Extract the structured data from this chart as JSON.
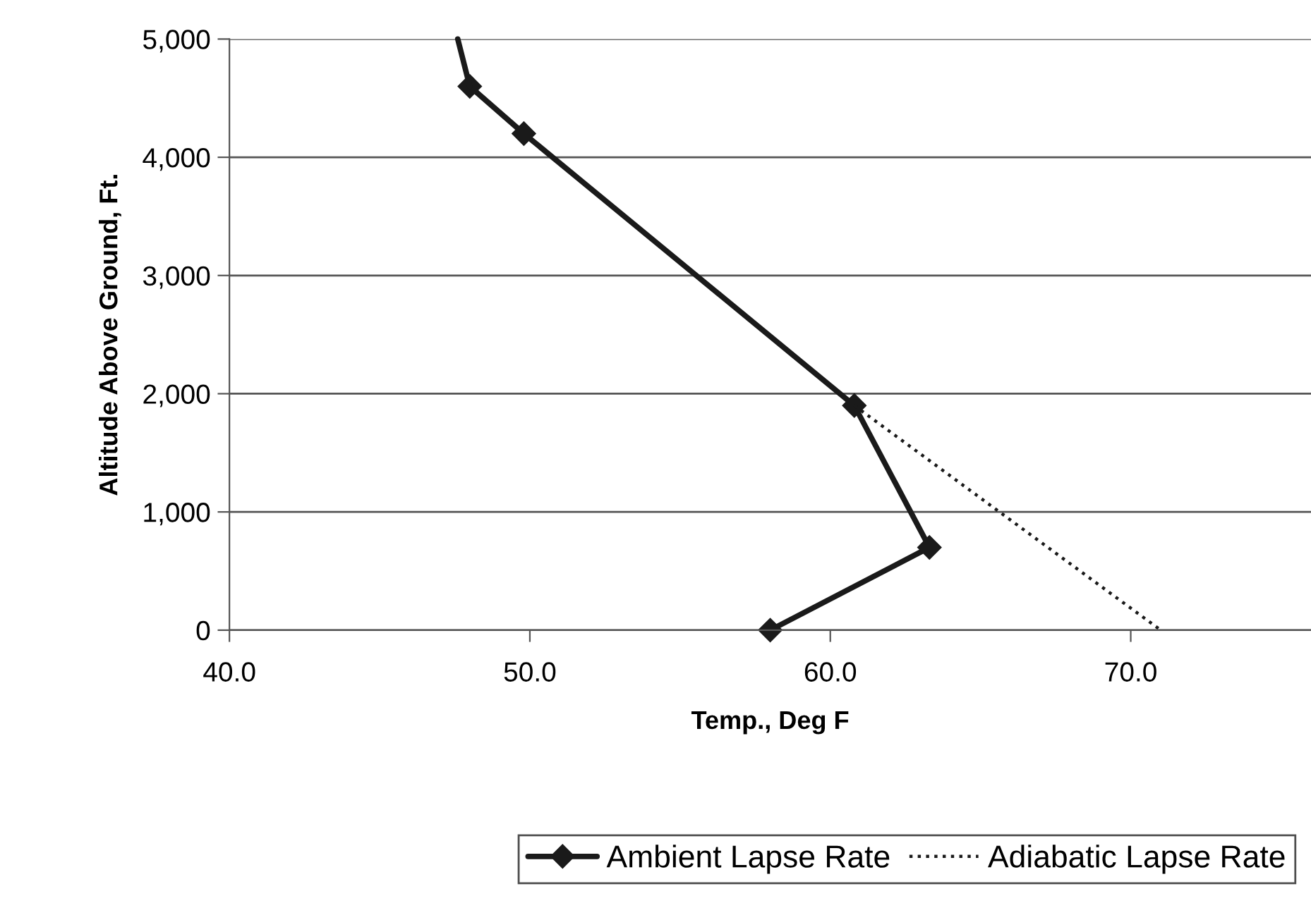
{
  "chart_data": {
    "type": "line",
    "xlabel": "Temp., Deg F",
    "ylabel": "Altitude Above Ground, Ft.",
    "series": [
      {
        "name": "Ambient Lapse Rate",
        "color": "#1a1a1a",
        "marker": "diamond",
        "line_style": "solid",
        "x": [
          58.0,
          63.3,
          60.8,
          49.8,
          48.0
        ],
        "values": [
          0,
          700,
          1900,
          4200,
          4600
        ]
      },
      {
        "color": "#1a1a1a",
        "marker": "none",
        "line_style": "solid",
        "x": [
          48.0,
          47.6
        ],
        "values": [
          4600,
          5000
        ]
      },
      {
        "name": "Adiabatic Lapse Rate",
        "color": "#1a1a1a",
        "marker": "none",
        "line_style": "dotted",
        "x": [
          60.8,
          71.0
        ],
        "values": [
          1900,
          0
        ]
      }
    ],
    "xlim": [
      40,
      76
    ],
    "ylim": [
      0,
      5000
    ],
    "xticks": [
      {
        "value": 40,
        "label": "40.0"
      },
      {
        "value": 50,
        "label": "50.0"
      },
      {
        "value": 60,
        "label": "60.0"
      },
      {
        "value": 70,
        "label": "70.0"
      }
    ],
    "yticks": [
      0,
      {
        "value": 1000,
        "label": "1,000"
      },
      {
        "value": 2000,
        "label": "2,000"
      },
      {
        "value": 3000,
        "label": "3,000"
      },
      {
        "value": 4000,
        "label": "4,000"
      },
      {
        "value": 5000,
        "label": "5,000"
      }
    ],
    "grid": "y",
    "legend": "bottom"
  }
}
